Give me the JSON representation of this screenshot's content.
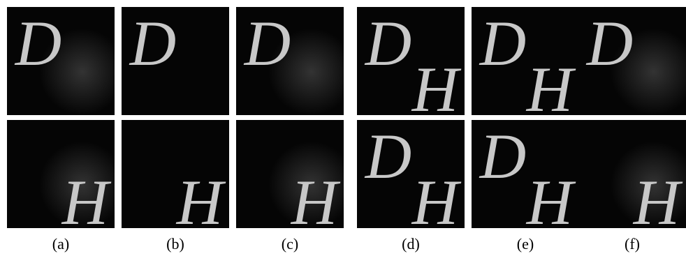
{
  "figure": {
    "columns": [
      {
        "label": "(a)",
        "panels": [
          {
            "letters": [
              "D"
            ]
          },
          {
            "letters": [
              "H"
            ]
          }
        ]
      },
      {
        "label": "(b)",
        "panels": [
          {
            "letters": [
              "D"
            ]
          },
          {
            "letters": [
              "H"
            ]
          }
        ]
      },
      {
        "label": "(c)",
        "panels": [
          {
            "letters": [
              "D"
            ]
          },
          {
            "letters": [
              "H"
            ]
          }
        ]
      },
      {
        "label": "(d)",
        "panels": [
          {
            "letters": [
              "D",
              "H"
            ]
          },
          {
            "letters": [
              "D",
              "H"
            ]
          }
        ]
      },
      {
        "label": "(e)",
        "panels": [
          {
            "letters": [
              "D",
              "H"
            ]
          },
          {
            "letters": [
              "D",
              "H"
            ]
          }
        ]
      },
      {
        "label": "(f)",
        "panels": [
          {
            "letters": [
              "D"
            ]
          },
          {
            "letters": [
              "H"
            ]
          }
        ]
      }
    ]
  }
}
